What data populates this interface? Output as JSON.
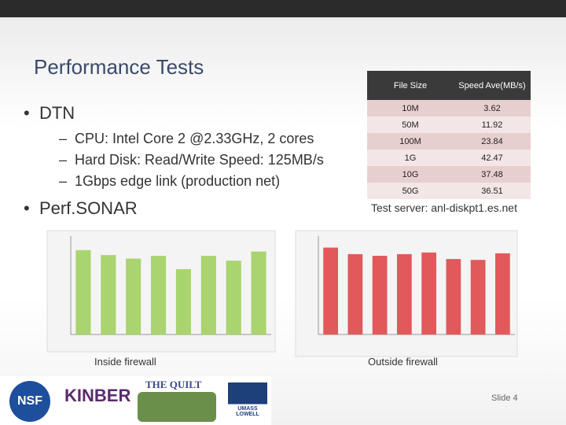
{
  "title": "Performance Tests",
  "bullets": [
    {
      "text": "DTN",
      "sub": [
        "CPU: Intel Core 2 @2.33GHz, 2 cores",
        "Hard Disk: Read/Write Speed: 125MB/s",
        "1Gbps edge link (production net)"
      ]
    },
    {
      "text": "Perf.SONAR"
    }
  ],
  "table": {
    "header": [
      "File Size",
      "Speed Ave(MB/s)"
    ],
    "rows": [
      [
        "10M",
        "3.62"
      ],
      [
        "50M",
        "11.92"
      ],
      [
        "100M",
        "23.84"
      ],
      [
        "1G",
        "42.47"
      ],
      [
        "10G",
        "37.48"
      ],
      [
        "50G",
        "36.51"
      ]
    ]
  },
  "server_note": "Test server: anl-diskpt1.es.net",
  "charts": [
    {
      "caption": "Inside firewall",
      "color": "#a9d46f",
      "ylim": [
        0,
        1.4
      ],
      "values": [
        1.2,
        1.13,
        1.08,
        1.12,
        0.93,
        1.12,
        1.05,
        1.18
      ]
    },
    {
      "caption": "Outside firewall",
      "color": "#e2595b",
      "ylim": [
        0,
        1.2
      ],
      "values": [
        1.06,
        0.98,
        0.96,
        0.98,
        1.0,
        0.92,
        0.91,
        0.99
      ]
    }
  ],
  "logos": [
    "NSF",
    "KINBER",
    "THE QUILT",
    "UMASS LOWELL"
  ],
  "slide_number": "Slide 4"
}
